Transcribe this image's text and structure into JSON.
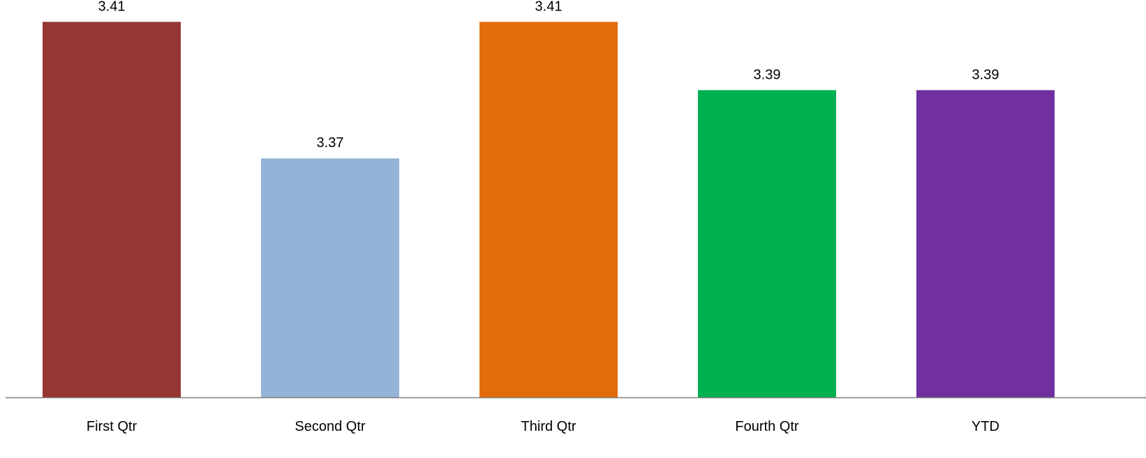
{
  "chart_data": {
    "type": "bar",
    "categories": [
      "First Qtr",
      "Second Qtr",
      "Third Qtr",
      "Fourth Qtr",
      "YTD"
    ],
    "values": [
      3.41,
      3.37,
      3.41,
      3.39,
      3.39
    ],
    "data_labels": [
      "3.41",
      "3.37",
      "3.41",
      "3.39",
      "3.39"
    ],
    "colors": [
      "#943634",
      "#95B3D7",
      "#E36C0A",
      "#00B050",
      "#7030A0"
    ],
    "axis_color": "#7F7F7F",
    "title": "",
    "xlabel": "",
    "ylabel": "",
    "ylim": [
      3.3,
      3.416
    ],
    "grid": false,
    "legend": "none"
  }
}
